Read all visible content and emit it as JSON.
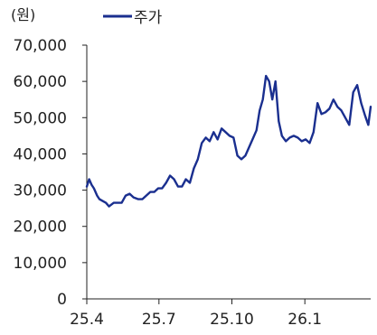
{
  "chart_data": {
    "type": "line",
    "title": "",
    "unit_label": "(원)",
    "xlabel": "",
    "ylabel": "",
    "ylim": [
      0,
      70000
    ],
    "y_ticks": [
      0,
      10000,
      20000,
      30000,
      40000,
      50000,
      60000,
      70000
    ],
    "y_tick_labels": [
      "0",
      "10,000",
      "20,000",
      "30,000",
      "40,000",
      "50,000",
      "60,000",
      "70,000"
    ],
    "x_tick_labels": [
      "25.4",
      "25.7",
      "25.10",
      "26.1"
    ],
    "x_tick_dates": [
      "2025-04-01",
      "2025-07-01",
      "2025-10-01",
      "2026-01-01"
    ],
    "xlim": [
      "2025-04-01",
      "2026-03-25"
    ],
    "grid": false,
    "legend_position": "top-right",
    "series": [
      {
        "name": "주가",
        "color": "#1a2f8f",
        "x": [
          "2025-04-01",
          "2025-04-04",
          "2025-04-07",
          "2025-04-10",
          "2025-04-14",
          "2025-04-17",
          "2025-04-21",
          "2025-04-25",
          "2025-04-29",
          "2025-05-05",
          "2025-05-10",
          "2025-05-15",
          "2025-05-20",
          "2025-05-25",
          "2025-05-30",
          "2025-06-05",
          "2025-06-10",
          "2025-06-15",
          "2025-06-20",
          "2025-06-25",
          "2025-06-30",
          "2025-07-05",
          "2025-07-10",
          "2025-07-15",
          "2025-07-20",
          "2025-07-25",
          "2025-07-30",
          "2025-08-04",
          "2025-08-09",
          "2025-08-14",
          "2025-08-19",
          "2025-08-24",
          "2025-08-29",
          "2025-09-03",
          "2025-09-08",
          "2025-09-13",
          "2025-09-18",
          "2025-09-23",
          "2025-09-28",
          "2025-10-03",
          "2025-10-08",
          "2025-10-13",
          "2025-10-18",
          "2025-10-23",
          "2025-10-28",
          "2025-11-01",
          "2025-11-05",
          "2025-11-09",
          "2025-11-13",
          "2025-11-17",
          "2025-11-21",
          "2025-11-25",
          "2025-11-29",
          "2025-12-03",
          "2025-12-08",
          "2025-12-13",
          "2025-12-18",
          "2025-12-23",
          "2025-12-28",
          "2026-01-02",
          "2026-01-07",
          "2026-01-12",
          "2026-01-17",
          "2026-01-22",
          "2026-01-27",
          "2026-02-01",
          "2026-02-06",
          "2026-02-11",
          "2026-02-16",
          "2026-02-21",
          "2026-02-26",
          "2026-03-03",
          "2026-03-08",
          "2026-03-13",
          "2026-03-18",
          "2026-03-22",
          "2026-03-25"
        ],
        "values": [
          31000,
          33000,
          31500,
          30500,
          28500,
          27500,
          27000,
          26500,
          25500,
          26500,
          26500,
          26500,
          28500,
          29000,
          28000,
          27500,
          27500,
          28500,
          29500,
          29500,
          30500,
          30500,
          32000,
          34000,
          33000,
          31000,
          31000,
          33000,
          32000,
          36000,
          38500,
          43000,
          44500,
          43500,
          46000,
          44000,
          47000,
          46000,
          45000,
          44500,
          39500,
          38500,
          39500,
          42000,
          44500,
          46500,
          52000,
          55000,
          61500,
          60000,
          55000,
          60000,
          49000,
          45000,
          43500,
          44500,
          45000,
          44500,
          43500,
          44000,
          43000,
          46000,
          54000,
          51000,
          51500,
          52500,
          55000,
          53000,
          52000,
          50000,
          48000,
          57000,
          59000,
          54000,
          50500,
          48000,
          53000
        ]
      }
    ]
  }
}
